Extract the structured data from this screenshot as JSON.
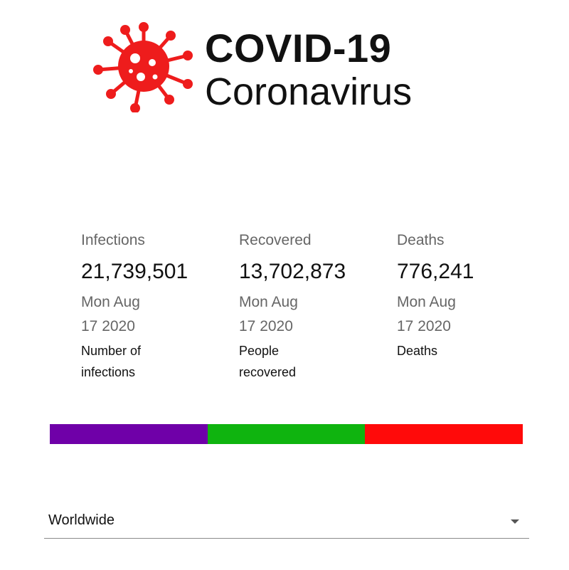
{
  "header": {
    "logo_icon": "virus-icon",
    "title": "COVID-19",
    "subtitle": "Coronavirus"
  },
  "stats": [
    {
      "label": "Infections",
      "value": "21,739,501",
      "date_line1": "Mon Aug",
      "date_line2": "17 2020",
      "description": "Number of infections",
      "color": "#6f00a8"
    },
    {
      "label": "Recovered",
      "value": "13,702,873",
      "date_line1": "Mon Aug",
      "date_line2": "17 2020",
      "description": "People recovered",
      "color": "#0fb40f"
    },
    {
      "label": "Deaths",
      "value": "776,241",
      "date_line1": "Mon Aug",
      "date_line2": "17 2020",
      "description": "Deaths",
      "color": "#ff0a0a"
    }
  ],
  "progress_bar": {
    "segments": [
      {
        "name": "infections",
        "fraction": 0.3333,
        "color": "#6f00a8"
      },
      {
        "name": "recovered",
        "fraction": 0.3333,
        "color": "#0fb40f"
      },
      {
        "name": "deaths",
        "fraction": 0.3334,
        "color": "#ff0a0a"
      }
    ]
  },
  "country_select": {
    "selected": "Worldwide",
    "icon": "chevron-down-icon"
  },
  "colors": {
    "logo": "#ee1c1c"
  }
}
